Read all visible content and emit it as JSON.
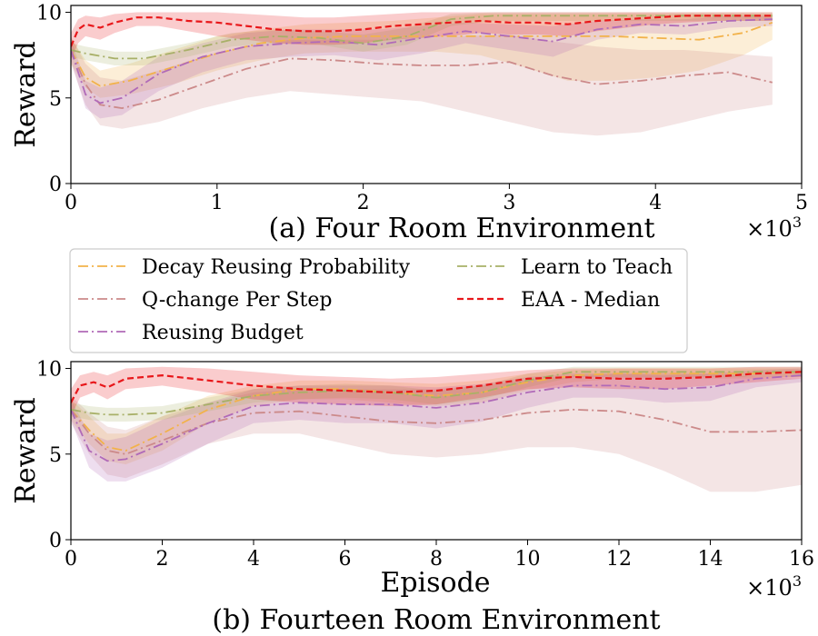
{
  "chart_data": [
    {
      "type": "line",
      "caption": "(a) Four Room Environment",
      "xlabel": "",
      "ylabel": "Reward",
      "x_multiplier_label": "×10",
      "x_multiplier_exp": "3",
      "xlim": [
        0,
        5
      ],
      "ylim": [
        0,
        10.4
      ],
      "xticks": [
        "0",
        "1",
        "2",
        "3",
        "4",
        "5"
      ],
      "yticks": [
        "0",
        "5",
        "10"
      ],
      "series": [
        {
          "name": "Decay Reusing Probability",
          "color": "#f2b24a",
          "style": "dashdot",
          "x": [
            0,
            0.1,
            0.2,
            0.4,
            0.7,
            1.0,
            1.3,
            1.6,
            1.9,
            2.2,
            2.5,
            2.8,
            3.1,
            3.4,
            3.7,
            4.0,
            4.3,
            4.6,
            4.8
          ],
          "y": [
            7.8,
            6.2,
            5.7,
            6.0,
            6.8,
            7.6,
            8.2,
            8.5,
            8.6,
            8.6,
            8.6,
            8.6,
            8.6,
            8.6,
            8.6,
            8.5,
            8.4,
            8.8,
            9.4
          ],
          "upper": [
            8.5,
            7.2,
            6.6,
            7.0,
            7.8,
            8.6,
            9.0,
            9.3,
            9.4,
            9.5,
            9.7,
            9.9,
            9.9,
            9.9,
            9.9,
            9.9,
            9.9,
            9.9,
            9.9
          ],
          "lower": [
            7.0,
            5.6,
            5.0,
            5.2,
            5.8,
            6.6,
            7.2,
            7.6,
            7.7,
            7.7,
            7.7,
            7.5,
            6.8,
            6.0,
            6.0,
            6.2,
            6.6,
            7.5,
            8.4
          ]
        },
        {
          "name": "Q-change Per Step",
          "color": "#cc8a8a",
          "style": "dashdot",
          "x": [
            0,
            0.1,
            0.2,
            0.35,
            0.6,
            0.9,
            1.2,
            1.5,
            1.8,
            2.1,
            2.4,
            2.7,
            3.0,
            3.3,
            3.6,
            3.9,
            4.2,
            4.5,
            4.8
          ],
          "y": [
            7.8,
            5.8,
            4.6,
            4.4,
            4.9,
            5.8,
            6.7,
            7.3,
            7.2,
            7.0,
            6.9,
            6.9,
            7.1,
            6.3,
            5.8,
            6.0,
            6.3,
            6.5,
            5.9
          ],
          "upper": [
            8.6,
            7.0,
            6.2,
            6.0,
            6.6,
            7.4,
            8.0,
            8.4,
            8.4,
            8.4,
            8.5,
            8.6,
            8.7,
            8.3,
            8.0,
            7.8,
            7.8,
            7.6,
            7.4
          ],
          "lower": [
            7.0,
            4.6,
            3.4,
            3.2,
            3.6,
            4.4,
            5.0,
            5.4,
            5.2,
            5.0,
            4.8,
            4.2,
            3.6,
            3.0,
            2.8,
            3.0,
            3.6,
            4.2,
            4.6
          ]
        },
        {
          "name": "Reusing Budget",
          "color": "#b06ab8",
          "style": "dashdot",
          "x": [
            0,
            0.1,
            0.2,
            0.35,
            0.6,
            0.9,
            1.2,
            1.5,
            1.8,
            2.1,
            2.4,
            2.7,
            3.0,
            3.3,
            3.6,
            3.9,
            4.2,
            4.5,
            4.8
          ],
          "y": [
            7.8,
            5.2,
            4.7,
            5.0,
            6.4,
            7.4,
            8.0,
            8.2,
            8.3,
            8.1,
            8.5,
            8.9,
            8.6,
            8.3,
            9.0,
            9.3,
            9.2,
            9.5,
            9.6
          ],
          "upper": [
            8.4,
            6.0,
            5.6,
            6.0,
            7.4,
            8.2,
            8.8,
            9.0,
            9.0,
            9.0,
            9.2,
            9.4,
            9.3,
            9.2,
            9.5,
            9.6,
            9.6,
            9.8,
            9.8
          ],
          "lower": [
            7.2,
            4.4,
            3.8,
            4.0,
            5.4,
            6.5,
            7.2,
            7.4,
            7.5,
            7.2,
            7.6,
            8.2,
            7.8,
            7.4,
            8.4,
            8.8,
            8.7,
            9.1,
            9.2
          ]
        },
        {
          "name": "Learn to Teach",
          "color": "#a8b068",
          "style": "dashdot",
          "x": [
            0,
            0.1,
            0.3,
            0.5,
            0.8,
            1.1,
            1.4,
            1.7,
            2.0,
            2.3,
            2.6,
            2.9,
            3.2,
            3.5,
            3.8,
            4.1,
            4.4,
            4.8
          ],
          "y": [
            7.8,
            7.6,
            7.3,
            7.3,
            7.8,
            8.4,
            8.6,
            8.5,
            8.2,
            8.6,
            9.6,
            9.8,
            9.8,
            9.8,
            9.8,
            9.8,
            9.8,
            9.8
          ],
          "upper": [
            8.2,
            8.0,
            7.7,
            7.7,
            8.2,
            8.8,
            9.0,
            8.9,
            8.7,
            9.1,
            9.9,
            10.0,
            10.0,
            10.0,
            10.0,
            10.0,
            10.0,
            10.0
          ],
          "lower": [
            7.4,
            7.2,
            6.9,
            6.9,
            7.4,
            8.0,
            8.2,
            8.1,
            7.7,
            8.1,
            9.2,
            9.5,
            9.5,
            9.5,
            9.5,
            9.5,
            9.5,
            9.5
          ]
        },
        {
          "name": "EAA - Median",
          "color": "#e8171a",
          "style": "dashed",
          "x": [
            0,
            0.05,
            0.1,
            0.2,
            0.3,
            0.45,
            0.6,
            0.8,
            1.0,
            1.2,
            1.4,
            1.6,
            1.8,
            2.0,
            2.2,
            2.4,
            2.6,
            2.8,
            3.0,
            3.2,
            3.4,
            3.6,
            3.8,
            4.0,
            4.2,
            4.4,
            4.6,
            4.8
          ],
          "y": [
            8.0,
            9.0,
            9.3,
            9.1,
            9.4,
            9.7,
            9.7,
            9.5,
            9.4,
            9.2,
            9.0,
            8.9,
            8.9,
            9.0,
            9.2,
            9.3,
            9.4,
            9.5,
            9.4,
            9.4,
            9.3,
            9.5,
            9.6,
            9.7,
            9.8,
            9.8,
            9.8,
            9.8
          ],
          "upper": [
            8.8,
            9.6,
            9.8,
            9.7,
            9.9,
            10.0,
            10.0,
            10.0,
            10.0,
            9.9,
            9.8,
            9.7,
            9.7,
            9.8,
            9.9,
            10.0,
            10.0,
            10.0,
            10.0,
            10.0,
            10.0,
            10.0,
            10.0,
            10.0,
            10.0,
            10.0,
            10.0,
            10.0
          ],
          "lower": [
            7.2,
            8.2,
            8.6,
            8.4,
            8.8,
            9.2,
            9.2,
            8.9,
            8.6,
            8.4,
            8.2,
            8.1,
            8.1,
            8.2,
            8.4,
            8.5,
            8.6,
            8.8,
            8.7,
            8.7,
            8.6,
            8.9,
            9.1,
            9.3,
            9.4,
            9.5,
            9.5,
            9.5
          ]
        }
      ]
    },
    {
      "type": "line",
      "caption": "(b) Fourteen Room Environment",
      "xlabel": "Episode",
      "ylabel": "Reward",
      "x_multiplier_label": "×10",
      "x_multiplier_exp": "3",
      "xlim": [
        0,
        16
      ],
      "ylim": [
        0,
        10.4
      ],
      "xticks": [
        "0",
        "2",
        "4",
        "6",
        "8",
        "10",
        "12",
        "14",
        "16"
      ],
      "yticks": [
        "0",
        "5",
        "10"
      ],
      "series": [
        {
          "name": "Decay Reusing Probability",
          "color": "#f2b24a",
          "style": "dashdot",
          "x": [
            0,
            0.4,
            0.8,
            1.2,
            2,
            3,
            4,
            5,
            6,
            7,
            8,
            9,
            10,
            11,
            12,
            13,
            14,
            15,
            16
          ],
          "y": [
            7.6,
            6.4,
            5.4,
            5.2,
            6.2,
            7.6,
            8.4,
            8.8,
            8.8,
            8.6,
            8.4,
            8.6,
            9.2,
            9.6,
            9.7,
            9.7,
            9.7,
            9.7,
            9.8
          ],
          "upper": [
            8.2,
            7.2,
            6.2,
            6.2,
            7.2,
            8.4,
            9.0,
            9.3,
            9.3,
            9.2,
            9.1,
            9.3,
            9.7,
            9.9,
            10.0,
            10.0,
            10.0,
            10.0,
            10.0
          ],
          "lower": [
            7.0,
            5.6,
            4.6,
            4.4,
            5.2,
            6.8,
            7.8,
            8.2,
            8.2,
            8.0,
            7.8,
            8.0,
            8.7,
            9.2,
            9.4,
            9.4,
            9.4,
            9.4,
            9.5
          ]
        },
        {
          "name": "Q-change Per Step",
          "color": "#cc8a8a",
          "style": "dashdot",
          "x": [
            0,
            0.4,
            0.8,
            1.2,
            2,
            3,
            4,
            5,
            6,
            7,
            8,
            9,
            10,
            11,
            12,
            13,
            14,
            15,
            16
          ],
          "y": [
            7.6,
            6.2,
            5.2,
            5.0,
            5.8,
            6.8,
            7.4,
            7.5,
            7.2,
            6.9,
            6.8,
            7.0,
            7.4,
            7.6,
            7.5,
            7.0,
            6.3,
            6.3,
            6.4
          ],
          "upper": [
            8.4,
            7.4,
            6.6,
            6.4,
            7.2,
            8.0,
            8.6,
            8.8,
            8.8,
            8.8,
            8.8,
            9.0,
            9.3,
            9.6,
            9.7,
            9.7,
            9.7,
            9.5,
            9.4
          ],
          "lower": [
            6.8,
            5.0,
            3.8,
            3.6,
            4.4,
            5.6,
            6.2,
            6.2,
            5.6,
            5.0,
            4.8,
            5.0,
            5.4,
            5.4,
            5.0,
            4.0,
            2.8,
            2.8,
            3.2
          ]
        },
        {
          "name": "Reusing Budget",
          "color": "#b06ab8",
          "style": "dashdot",
          "x": [
            0,
            0.4,
            0.8,
            1.2,
            2,
            3,
            4,
            5,
            6,
            7,
            8,
            9,
            10,
            11,
            12,
            13,
            14,
            15,
            16
          ],
          "y": [
            7.6,
            5.2,
            4.6,
            4.7,
            5.6,
            6.8,
            7.8,
            8.0,
            7.9,
            7.9,
            7.7,
            8.0,
            8.6,
            9.0,
            9.0,
            8.8,
            8.9,
            9.4,
            9.6
          ],
          "upper": [
            8.2,
            6.2,
            5.8,
            6.0,
            7.0,
            8.0,
            8.8,
            9.0,
            9.0,
            9.0,
            8.9,
            9.1,
            9.5,
            9.7,
            9.7,
            9.6,
            9.7,
            9.9,
            10.0
          ],
          "lower": [
            7.0,
            4.2,
            3.4,
            3.4,
            4.2,
            5.6,
            6.8,
            7.0,
            6.8,
            6.8,
            6.5,
            6.9,
            7.7,
            8.3,
            8.3,
            8.0,
            8.1,
            8.9,
            9.2
          ]
        },
        {
          "name": "Learn to Teach",
          "color": "#a8b068",
          "style": "dashdot",
          "x": [
            0,
            0.4,
            0.8,
            1.2,
            2,
            3,
            4,
            5,
            6,
            7,
            8,
            9,
            10,
            11,
            12,
            13,
            14,
            15,
            16
          ],
          "y": [
            7.6,
            7.4,
            7.3,
            7.3,
            7.4,
            7.9,
            8.4,
            8.6,
            8.7,
            8.6,
            8.3,
            8.6,
            9.3,
            9.8,
            9.8,
            9.8,
            9.8,
            9.8,
            9.8
          ],
          "upper": [
            8.0,
            7.8,
            7.7,
            7.7,
            7.8,
            8.3,
            8.8,
            9.0,
            9.1,
            9.0,
            8.7,
            9.0,
            9.7,
            10.1,
            10.1,
            10.1,
            10.1,
            10.1,
            10.1
          ],
          "lower": [
            7.2,
            7.0,
            6.9,
            6.9,
            7.0,
            7.5,
            8.0,
            8.2,
            8.3,
            8.2,
            7.9,
            8.2,
            8.9,
            9.5,
            9.5,
            9.5,
            9.5,
            9.5,
            9.5
          ]
        },
        {
          "name": "EAA - Median",
          "color": "#e8171a",
          "style": "dashed",
          "x": [
            0,
            0.2,
            0.5,
            0.8,
            1.2,
            2,
            3,
            4,
            5,
            6,
            7,
            8,
            9,
            10,
            11,
            12,
            13,
            14,
            15,
            16
          ],
          "y": [
            8.0,
            9.0,
            9.2,
            8.9,
            9.4,
            9.6,
            9.3,
            9.0,
            8.8,
            8.7,
            8.6,
            8.7,
            9.0,
            9.4,
            9.5,
            9.4,
            9.4,
            9.5,
            9.7,
            9.8
          ],
          "upper": [
            8.8,
            9.6,
            9.8,
            9.6,
            10.0,
            10.1,
            10.0,
            9.8,
            9.6,
            9.5,
            9.4,
            9.5,
            9.7,
            9.9,
            10.0,
            10.0,
            10.0,
            10.0,
            10.1,
            10.1
          ],
          "lower": [
            7.2,
            8.3,
            8.6,
            8.2,
            8.8,
            9.0,
            8.6,
            8.2,
            8.0,
            7.9,
            7.8,
            7.9,
            8.3,
            8.8,
            8.9,
            8.8,
            8.8,
            9.0,
            9.2,
            9.4
          ]
        }
      ]
    }
  ],
  "legend": {
    "entries": [
      {
        "label": "Decay Reusing Probability",
        "series": 0
      },
      {
        "label": "Q-change Per Step",
        "series": 1
      },
      {
        "label": "Reusing Budget",
        "series": 2
      },
      {
        "label": "Learn to Teach",
        "series": 3
      },
      {
        "label": "EAA - Median",
        "series": 4
      }
    ]
  }
}
